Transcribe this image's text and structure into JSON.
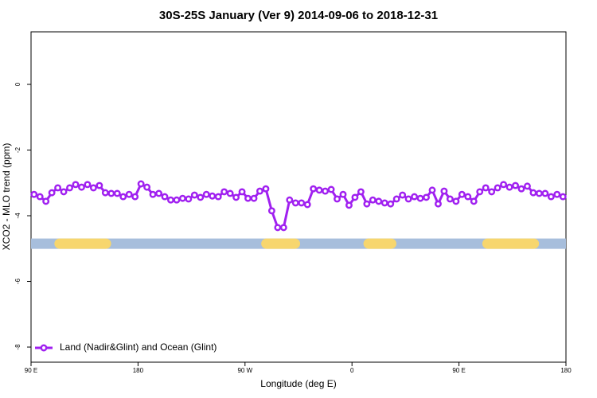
{
  "chart_data": {
    "type": "line",
    "title": "30S-25S January (Ver 9)   2014-09-06 to 2018-12-31",
    "x_label": "Longitude (deg E)",
    "y_label": "XCO2 - MLO trend (ppm)",
    "xlim": [
      90,
      540
    ],
    "xticks": [
      {
        "value": 90,
        "label": "90 E"
      },
      180,
      {
        "value": 270,
        "label": "90 W"
      },
      {
        "value": 360,
        "label": "0"
      },
      {
        "value": 450,
        "label": "90 E"
      },
      {
        "value": 540,
        "label": "180"
      }
    ],
    "ylim": [
      -8.46,
      1.6
    ],
    "yticks": [
      -8,
      -6,
      -4,
      -2,
      0
    ],
    "legend": "bottom-left",
    "series": [
      {
        "name": "Land (Nadir&Glint) and Ocean (Glint)",
        "color": "#a020f0",
        "x": [
          92.5,
          97.5,
          102.5,
          107.5,
          112.5,
          117.5,
          122.5,
          127.5,
          132.5,
          137.5,
          142.5,
          147.5,
          152.5,
          157.5,
          162.5,
          167.5,
          172.5,
          177.5,
          182.5,
          187.5,
          192.5,
          197.5,
          202.5,
          207.5,
          212.5,
          217.5,
          222.5,
          227.5,
          232.5,
          237.5,
          242.5,
          247.5,
          252.5,
          257.5,
          262.5,
          267.5,
          272.5,
          277.5,
          282.5,
          287.5,
          292.5,
          297.5,
          302.5,
          307.5,
          312.5,
          317.5,
          322.5,
          327.5,
          332.5,
          337.5,
          342.5,
          347.5,
          352.5,
          357.5,
          362.5,
          367.5,
          372.5,
          377.5,
          382.5,
          387.5,
          392.5,
          397.5,
          402.5,
          407.5,
          412.5,
          417.5,
          422.5,
          427.5,
          432.5,
          437.5,
          442.5,
          447.5,
          452.5,
          457.5,
          462.5,
          467.5,
          472.5,
          477.5,
          482.5,
          487.5,
          492.5,
          497.5,
          502.5,
          507.5,
          512.5,
          517.5,
          522.5,
          527.5,
          532.5,
          537.5
        ],
        "values": [
          -3.35,
          -3.42,
          -3.56,
          -3.3,
          -3.15,
          -3.27,
          -3.15,
          -3.05,
          -3.13,
          -3.05,
          -3.15,
          -3.08,
          -3.3,
          -3.32,
          -3.32,
          -3.42,
          -3.35,
          -3.42,
          -3.03,
          -3.13,
          -3.35,
          -3.32,
          -3.42,
          -3.52,
          -3.52,
          -3.47,
          -3.49,
          -3.37,
          -3.44,
          -3.35,
          -3.4,
          -3.42,
          -3.27,
          -3.32,
          -3.44,
          -3.27,
          -3.47,
          -3.47,
          -3.25,
          -3.18,
          -3.85,
          -4.36,
          -4.36,
          -3.52,
          -3.61,
          -3.61,
          -3.66,
          -3.18,
          -3.22,
          -3.25,
          -3.2,
          -3.49,
          -3.35,
          -3.68,
          -3.44,
          -3.27,
          -3.64,
          -3.52,
          -3.56,
          -3.61,
          -3.64,
          -3.49,
          -3.37,
          -3.49,
          -3.42,
          -3.47,
          -3.44,
          -3.22,
          -3.64,
          -3.25,
          -3.49,
          -3.56,
          -3.35,
          -3.42,
          -3.56,
          -3.27,
          -3.15,
          -3.27,
          -3.15,
          -3.05,
          -3.13,
          -3.08,
          -3.18,
          -3.1,
          -3.3,
          -3.32,
          -3.32,
          -3.42,
          -3.35,
          -3.42
        ]
      }
    ],
    "band": {
      "y": -4.85,
      "ocean_color": "#a7bedc",
      "land_color": "#f7d66e",
      "land": [
        [
          114,
          153
        ],
        [
          288,
          312
        ],
        [
          374,
          393
        ],
        [
          474,
          513
        ]
      ]
    }
  }
}
